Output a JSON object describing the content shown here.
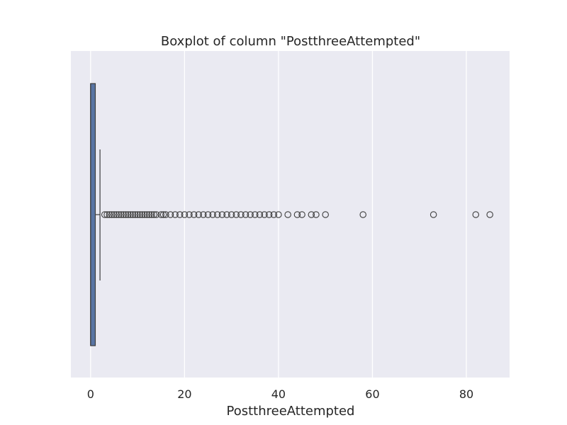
{
  "chart_data": {
    "type": "boxplot",
    "title": "Boxplot of column \"PostthreeAttempted\"",
    "xlabel": "PostthreeAttempted",
    "ylabel": "",
    "orientation": "horizontal",
    "xlim": [
      -4.2,
      89.2
    ],
    "xticks": [
      0,
      20,
      40,
      60,
      80
    ],
    "xtick_labels": [
      "0",
      "20",
      "40",
      "60",
      "80"
    ],
    "grid": true,
    "box": {
      "min": 0,
      "q1": 0,
      "median": 0,
      "q3": 1,
      "whisker_low": 0,
      "whisker_high": 2,
      "color": "#5975a4",
      "edge_color": "#3d3d3d"
    },
    "outliers": [
      3,
      3.5,
      4,
      4.5,
      5,
      5.5,
      6,
      6.5,
      7,
      7.5,
      8,
      8.5,
      9,
      9.5,
      10,
      10.5,
      11,
      11.5,
      12,
      12.5,
      13,
      13.5,
      14,
      15,
      15.5,
      16,
      17,
      18,
      19,
      20,
      21,
      22,
      23,
      24,
      25,
      26,
      27,
      28,
      29,
      30,
      31,
      32,
      33,
      34,
      35,
      36,
      37,
      38,
      39,
      40,
      42,
      44,
      45,
      47,
      48,
      50,
      58,
      73,
      82,
      85
    ],
    "colors": {
      "plot_background": "#eaeaf2",
      "grid": "#ffffff",
      "text": "#262626"
    }
  }
}
